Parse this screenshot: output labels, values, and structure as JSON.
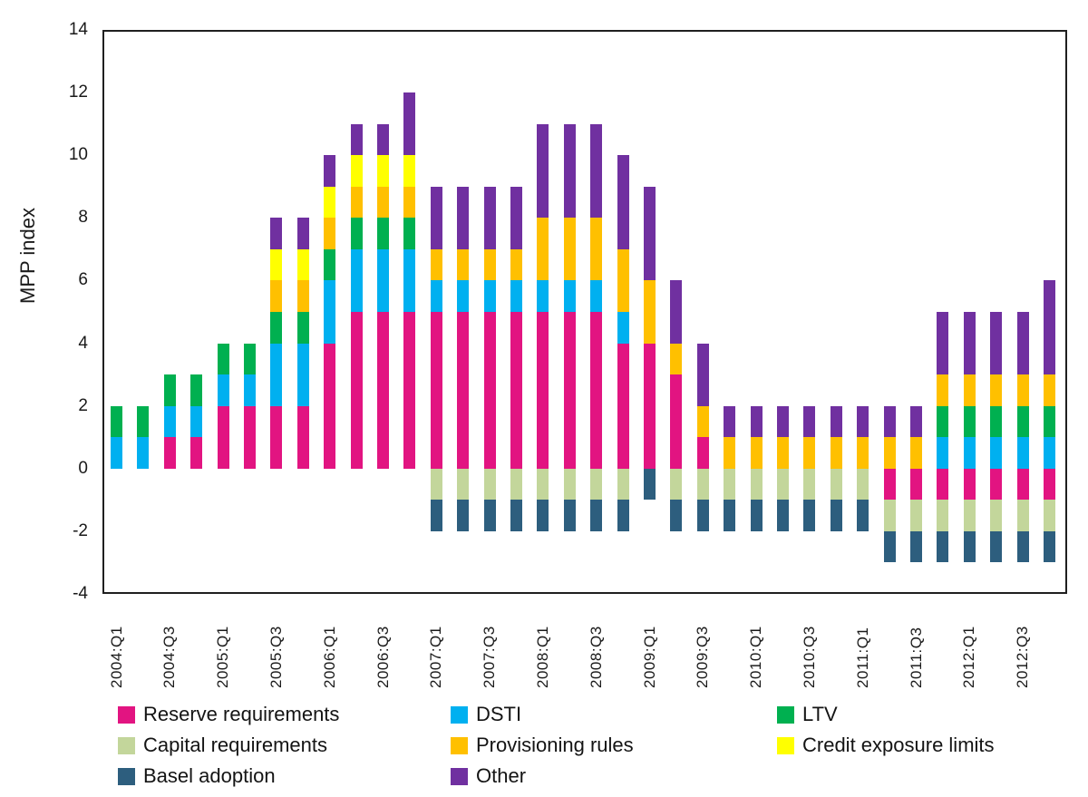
{
  "y_axis": {
    "label": "MPP index",
    "ticks": [
      14,
      12,
      10,
      8,
      6,
      4,
      2,
      0,
      -2,
      -4
    ],
    "min": -4,
    "max": 14
  },
  "x_axis": {
    "tick_labels": [
      "2004:Q1",
      "2004:Q3",
      "2005:Q1",
      "2005:Q3",
      "2006:Q1",
      "2006:Q3",
      "2007:Q1",
      "2007:Q3",
      "2008:Q1",
      "2008:Q3",
      "2009:Q1",
      "2009:Q3",
      "2010:Q1",
      "2010:Q3",
      "2011:Q1",
      "2011:Q3",
      "2012:Q1",
      "2012:Q3"
    ]
  },
  "chart_data": {
    "type": "bar",
    "stacked": true,
    "grid": false,
    "legend_position": "bottom",
    "ylabel": "MPP index",
    "xlabel": "",
    "ylim": [
      -4,
      14
    ],
    "categories": [
      "2004:Q1",
      "2004:Q2",
      "2004:Q3",
      "2004:Q4",
      "2005:Q1",
      "2005:Q2",
      "2005:Q3",
      "2005:Q4",
      "2006:Q1",
      "2006:Q2",
      "2006:Q3",
      "2006:Q4",
      "2007:Q1",
      "2007:Q2",
      "2007:Q3",
      "2007:Q4",
      "2008:Q1",
      "2008:Q2",
      "2008:Q3",
      "2008:Q4",
      "2009:Q1",
      "2009:Q2",
      "2009:Q3",
      "2009:Q4",
      "2010:Q1",
      "2010:Q2",
      "2010:Q3",
      "2010:Q4",
      "2011:Q1",
      "2011:Q2",
      "2011:Q3",
      "2011:Q4",
      "2012:Q1",
      "2012:Q2",
      "2012:Q3",
      "2012:Q4"
    ],
    "series": [
      {
        "name": "Reserve requirements",
        "color": "#E21481",
        "values": [
          0,
          0,
          1,
          1,
          2,
          2,
          2,
          2,
          4,
          5,
          5,
          5,
          5,
          5,
          5,
          5,
          5,
          5,
          5,
          4,
          4,
          3,
          1,
          0,
          0,
          0,
          0,
          0,
          0,
          -1,
          -1,
          -1,
          -1,
          -1,
          -1,
          -1
        ]
      },
      {
        "name": "DSTI",
        "color": "#00B0F0",
        "values": [
          1,
          1,
          1,
          1,
          1,
          1,
          2,
          2,
          2,
          2,
          2,
          2,
          1,
          1,
          1,
          1,
          1,
          1,
          1,
          1,
          0,
          0,
          0,
          0,
          0,
          0,
          0,
          0,
          0,
          0,
          0,
          1,
          1,
          1,
          1,
          1
        ]
      },
      {
        "name": "LTV",
        "color": "#00B050",
        "values": [
          1,
          1,
          1,
          1,
          1,
          1,
          1,
          1,
          1,
          1,
          1,
          1,
          0,
          0,
          0,
          0,
          0,
          0,
          0,
          0,
          0,
          0,
          0,
          0,
          0,
          0,
          0,
          0,
          0,
          0,
          0,
          1,
          1,
          1,
          1,
          1
        ]
      },
      {
        "name": "Capital requirements",
        "color": "#C3D69B",
        "values": [
          0,
          0,
          0,
          0,
          0,
          0,
          0,
          0,
          0,
          0,
          0,
          0,
          -1,
          -1,
          -1,
          -1,
          -1,
          -1,
          -1,
          -1,
          0,
          -1,
          -1,
          -1,
          -1,
          -1,
          -1,
          -1,
          -1,
          -1,
          -1,
          -1,
          -1,
          -1,
          -1,
          -1
        ]
      },
      {
        "name": "Provisioning rules",
        "color": "#FFC000",
        "values": [
          0,
          0,
          0,
          0,
          0,
          0,
          1,
          1,
          1,
          1,
          1,
          1,
          1,
          1,
          1,
          1,
          2,
          2,
          2,
          2,
          2,
          1,
          1,
          1,
          1,
          1,
          1,
          1,
          1,
          1,
          1,
          1,
          1,
          1,
          1,
          1
        ]
      },
      {
        "name": "Credit exposure limits",
        "color": "#FFFF00",
        "values": [
          0,
          0,
          0,
          0,
          0,
          0,
          1,
          1,
          1,
          1,
          1,
          1,
          0,
          0,
          0,
          0,
          0,
          0,
          0,
          0,
          0,
          0,
          0,
          0,
          0,
          0,
          0,
          0,
          0,
          0,
          0,
          0,
          0,
          0,
          0,
          0
        ]
      },
      {
        "name": "Basel adoption",
        "color": "#2D5E7E",
        "values": [
          0,
          0,
          0,
          0,
          0,
          0,
          0,
          0,
          0,
          0,
          0,
          0,
          -1,
          -1,
          -1,
          -1,
          -1,
          -1,
          -1,
          -1,
          -1,
          -1,
          -1,
          -1,
          -1,
          -1,
          -1,
          -1,
          -1,
          -1,
          -1,
          -1,
          -1,
          -1,
          -1,
          -1
        ]
      },
      {
        "name": "Other",
        "color": "#7030A0",
        "values": [
          0,
          0,
          0,
          0,
          0,
          0,
          1,
          1,
          1,
          1,
          1,
          2,
          2,
          2,
          2,
          2,
          3,
          3,
          3,
          3,
          3,
          2,
          2,
          1,
          1,
          1,
          1,
          1,
          1,
          1,
          1,
          2,
          2,
          2,
          2,
          3
        ]
      }
    ]
  }
}
